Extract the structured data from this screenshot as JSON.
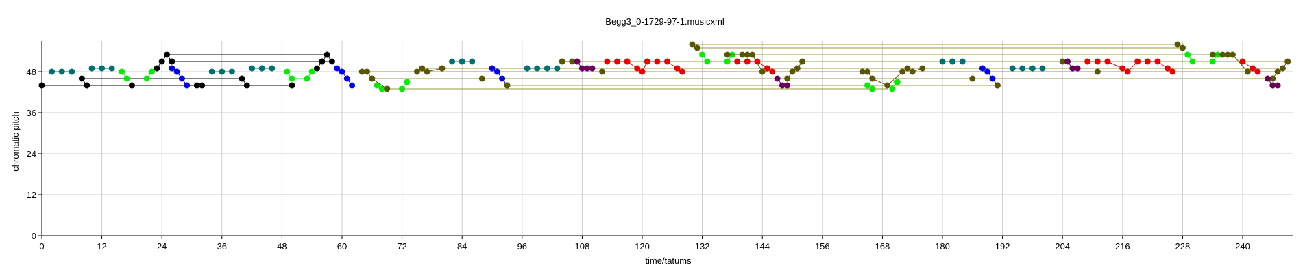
{
  "chart_data": {
    "type": "scatter",
    "title": "Begg3_0-1729-97-1.musicxml",
    "xlabel": "time/tatums",
    "ylabel": "chromatic pitch",
    "xlim": [
      0,
      250
    ],
    "ylim": [
      0,
      57
    ],
    "xticks": [
      0,
      12,
      24,
      36,
      48,
      60,
      72,
      84,
      96,
      108,
      120,
      132,
      144,
      156,
      168,
      180,
      192,
      204,
      216,
      228,
      240
    ],
    "yticks": [
      0,
      12,
      24,
      36,
      48
    ],
    "grid": true,
    "colors": {
      "black": "#000000",
      "teal": "#007070",
      "green": "#00ee00",
      "blue": "#0000ee",
      "olive": "#5a5500",
      "red": "#ee0000",
      "purple": "#6a005a",
      "olive_line": "#9a9a40"
    },
    "series": [
      {
        "color": "black",
        "points": [
          [
            0,
            44
          ],
          [
            8,
            46
          ],
          [
            9,
            44
          ],
          [
            18,
            44
          ],
          [
            23,
            49
          ],
          [
            24,
            51
          ],
          [
            25,
            53
          ],
          [
            26,
            51
          ],
          [
            31,
            44
          ],
          [
            32,
            44
          ],
          [
            40,
            46
          ],
          [
            41,
            44
          ],
          [
            50,
            44
          ],
          [
            55,
            49
          ],
          [
            56,
            51
          ],
          [
            57,
            53
          ],
          [
            58,
            51
          ]
        ]
      },
      {
        "color": "teal",
        "points": [
          [
            2,
            48
          ],
          [
            4,
            48
          ],
          [
            6,
            48
          ],
          [
            10,
            49
          ],
          [
            12,
            49
          ],
          [
            14,
            49
          ],
          [
            34,
            48
          ],
          [
            36,
            48
          ],
          [
            38,
            48
          ],
          [
            42,
            49
          ],
          [
            44,
            49
          ],
          [
            46,
            49
          ],
          [
            82,
            51
          ],
          [
            84,
            51
          ],
          [
            86,
            51
          ],
          [
            97,
            49
          ],
          [
            99,
            49
          ],
          [
            101,
            49
          ],
          [
            103,
            49
          ],
          [
            180,
            51
          ],
          [
            182,
            51
          ],
          [
            184,
            51
          ],
          [
            194,
            49
          ],
          [
            196,
            49
          ],
          [
            198,
            49
          ],
          [
            200,
            49
          ]
        ]
      },
      {
        "color": "green",
        "points": [
          [
            16,
            48
          ],
          [
            17,
            46
          ],
          [
            21,
            46
          ],
          [
            22,
            48
          ],
          [
            49,
            48
          ],
          [
            50,
            46
          ],
          [
            53,
            46
          ],
          [
            54,
            48
          ],
          [
            67,
            44
          ],
          [
            68,
            43
          ],
          [
            72,
            43
          ],
          [
            73,
            45
          ],
          [
            132,
            53
          ],
          [
            133,
            51
          ],
          [
            137,
            51
          ],
          [
            138,
            53
          ],
          [
            165,
            44
          ],
          [
            166,
            43
          ],
          [
            170,
            43
          ],
          [
            171,
            45
          ],
          [
            229,
            53
          ],
          [
            230,
            51
          ],
          [
            234,
            51
          ],
          [
            235,
            53
          ]
        ]
      },
      {
        "color": "blue",
        "points": [
          [
            26,
            49
          ],
          [
            27,
            48
          ],
          [
            28,
            46
          ],
          [
            29,
            44
          ],
          [
            59,
            49
          ],
          [
            60,
            48
          ],
          [
            61,
            46
          ],
          [
            62,
            44
          ],
          [
            90,
            49
          ],
          [
            91,
            48
          ],
          [
            92,
            46
          ],
          [
            93,
            44
          ],
          [
            188,
            49
          ],
          [
            189,
            48
          ],
          [
            190,
            46
          ],
          [
            191,
            44
          ]
        ]
      },
      {
        "color": "olive",
        "points": [
          [
            64,
            48
          ],
          [
            65,
            48
          ],
          [
            66,
            46
          ],
          [
            69,
            43
          ],
          [
            75,
            48
          ],
          [
            76,
            49
          ],
          [
            77,
            48
          ],
          [
            80,
            49
          ],
          [
            88,
            46
          ],
          [
            93,
            44
          ],
          [
            104,
            51
          ],
          [
            106,
            51
          ],
          [
            112,
            48
          ],
          [
            130,
            56
          ],
          [
            131,
            55
          ],
          [
            137,
            53
          ],
          [
            140,
            53
          ],
          [
            141,
            53
          ],
          [
            142,
            53
          ],
          [
            144,
            48
          ],
          [
            149,
            46
          ],
          [
            150,
            48
          ],
          [
            151,
            49
          ],
          [
            152,
            51
          ],
          [
            164,
            48
          ],
          [
            165,
            48
          ],
          [
            166,
            46
          ],
          [
            169,
            44
          ],
          [
            172,
            48
          ],
          [
            173,
            49
          ],
          [
            174,
            48
          ],
          [
            176,
            49
          ],
          [
            186,
            46
          ],
          [
            191,
            44
          ],
          [
            204,
            51
          ],
          [
            211,
            48
          ],
          [
            227,
            56
          ],
          [
            228,
            55
          ],
          [
            234,
            53
          ],
          [
            236,
            53
          ],
          [
            237,
            53
          ],
          [
            238,
            53
          ],
          [
            241,
            48
          ],
          [
            246,
            46
          ],
          [
            247,
            48
          ],
          [
            248,
            49
          ],
          [
            249,
            51
          ]
        ]
      },
      {
        "color": "red",
        "points": [
          [
            113,
            51
          ],
          [
            115,
            51
          ],
          [
            117,
            51
          ],
          [
            119,
            49
          ],
          [
            120,
            48
          ],
          [
            121,
            51
          ],
          [
            123,
            51
          ],
          [
            125,
            51
          ],
          [
            127,
            49
          ],
          [
            128,
            48
          ],
          [
            139,
            51
          ],
          [
            141,
            51
          ],
          [
            143,
            51
          ],
          [
            145,
            49
          ],
          [
            146,
            48
          ],
          [
            209,
            51
          ],
          [
            211,
            51
          ],
          [
            213,
            51
          ],
          [
            216,
            49
          ],
          [
            217,
            48
          ],
          [
            219,
            51
          ],
          [
            221,
            51
          ],
          [
            223,
            51
          ],
          [
            225,
            49
          ],
          [
            226,
            48
          ],
          [
            240,
            51
          ],
          [
            242,
            49
          ],
          [
            243,
            48
          ]
        ]
      },
      {
        "color": "purple",
        "points": [
          [
            107,
            51
          ],
          [
            108,
            49
          ],
          [
            109,
            49
          ],
          [
            110,
            49
          ],
          [
            147,
            46
          ],
          [
            148,
            44
          ],
          [
            149,
            44
          ],
          [
            205,
            51
          ],
          [
            206,
            49
          ],
          [
            207,
            49
          ],
          [
            245,
            46
          ],
          [
            246,
            44
          ],
          [
            247,
            44
          ]
        ]
      }
    ]
  }
}
